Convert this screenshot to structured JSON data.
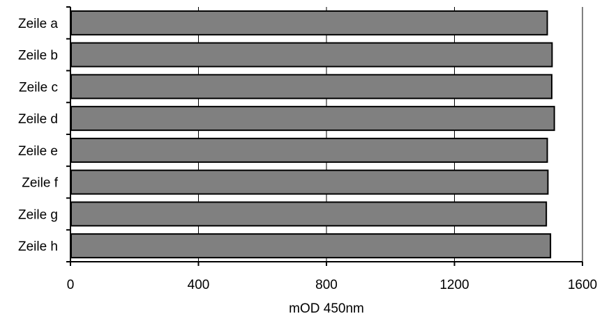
{
  "chart_data": {
    "type": "bar",
    "orientation": "horizontal",
    "categories": [
      "Zeile a",
      "Zeile b",
      "Zeile c",
      "Zeile d",
      "Zeile e",
      "Zeile f",
      "Zeile g",
      "Zeile h"
    ],
    "values": [
      1490,
      1505,
      1504,
      1512,
      1490,
      1492,
      1487,
      1500
    ],
    "title": "",
    "xlabel": "mOD 450nm",
    "ylabel": "",
    "xlim": [
      0,
      1600
    ],
    "x_ticks": [
      0,
      400,
      800,
      1200,
      1600
    ],
    "x_tick_labels": [
      "0",
      "400",
      "800",
      "1200",
      "1600"
    ],
    "grid": "vertical gridlines",
    "legend": "none",
    "colors": {
      "bar_fill": "#808080",
      "bar_stroke": "#000000",
      "grid": "#000000",
      "axis": "#000000"
    }
  }
}
